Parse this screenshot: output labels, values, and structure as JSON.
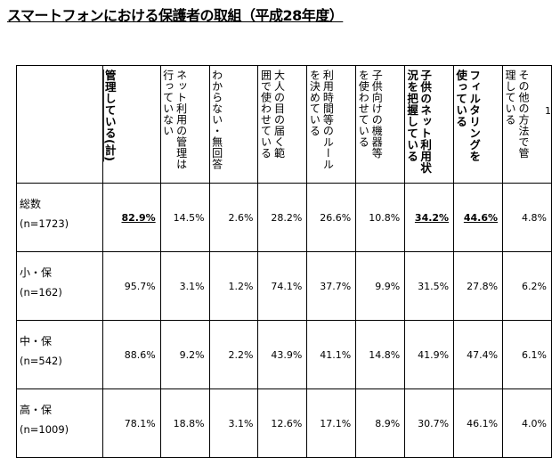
{
  "title": "スマートフォンにおける保護者の取組（平成28年度）",
  "page_mark": "1",
  "columns": [
    {
      "label": "管理している(計)",
      "bold": true,
      "underline": true
    },
    {
      "label": "ネット利用の管理は\n行っていない",
      "bold": false
    },
    {
      "label": "わからない・無回答",
      "bold": false
    },
    {
      "label": "大人の目の届く範\n囲で使わせている",
      "bold": false
    },
    {
      "label": "利用時間等のルール\nを決めている",
      "bold": false
    },
    {
      "label": "子供向けの機器等\nを使わせている",
      "bold": false
    },
    {
      "label": "子供のネット利用状\n況を把握している",
      "bold": true
    },
    {
      "label": "フィルタリングを\n使っている",
      "bold": true
    },
    {
      "label": "その他の方法で管\n理している",
      "bold": false
    }
  ],
  "rows": [
    {
      "label": "総数",
      "sub": "(n=1723)",
      "values": [
        "82.9%",
        "14.5%",
        "2.6%",
        "28.2%",
        "26.6%",
        "10.8%",
        "34.2%",
        "44.6%",
        "4.8%"
      ],
      "emph": [
        0,
        6,
        7
      ]
    },
    {
      "label": "小・保",
      "sub": "(n=162)",
      "values": [
        "95.7%",
        "3.1%",
        "1.2%",
        "74.1%",
        "37.7%",
        "9.9%",
        "31.5%",
        "27.8%",
        "6.2%"
      ],
      "emph": []
    },
    {
      "label": "中・保",
      "sub": "(n=542)",
      "values": [
        "88.6%",
        "9.2%",
        "2.2%",
        "43.9%",
        "41.1%",
        "14.8%",
        "41.9%",
        "47.4%",
        "6.1%"
      ],
      "emph": []
    },
    {
      "label": "高・保",
      "sub": "(n=1009)",
      "values": [
        "78.1%",
        "18.8%",
        "3.1%",
        "12.6%",
        "17.1%",
        "8.9%",
        "30.7%",
        "46.1%",
        "4.0%"
      ],
      "emph": []
    }
  ]
}
